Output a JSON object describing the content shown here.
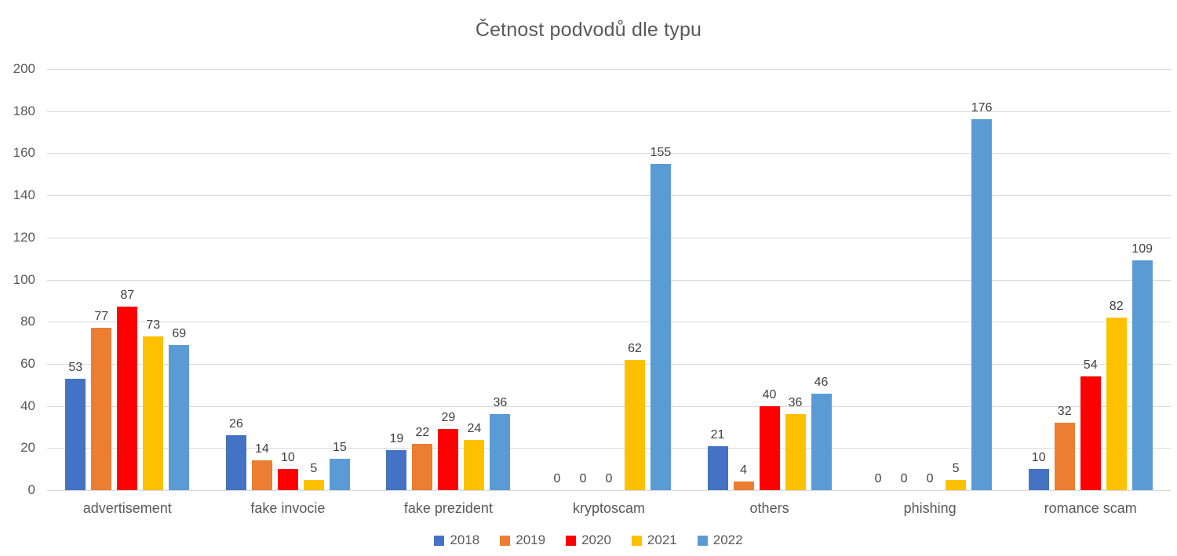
{
  "chart_data": {
    "type": "bar",
    "title": "Četnost podvodů dle typu",
    "categories": [
      "advertisement",
      "fake invocie",
      "fake prezident",
      "kryptoscam",
      "others",
      "phishing",
      "romance scam"
    ],
    "series": [
      {
        "name": "2018",
        "color": "#4472C4",
        "values": [
          53,
          26,
          19,
          0,
          21,
          0,
          10
        ]
      },
      {
        "name": "2019",
        "color": "#ED7D31",
        "values": [
          77,
          14,
          22,
          0,
          4,
          0,
          32
        ]
      },
      {
        "name": "2020",
        "color": "#FF0000",
        "values": [
          87,
          10,
          29,
          0,
          40,
          0,
          54
        ]
      },
      {
        "name": "2021",
        "color": "#FFC000",
        "values": [
          73,
          5,
          24,
          62,
          36,
          5,
          82
        ]
      },
      {
        "name": "2022",
        "color": "#5B9BD5",
        "values": [
          69,
          15,
          36,
          155,
          46,
          176,
          109
        ]
      }
    ],
    "ylim": [
      0,
      200
    ],
    "ytick_step": 20,
    "ytick_labels": [
      "0",
      "20",
      "40",
      "60",
      "80",
      "100",
      "120",
      "140",
      "160",
      "180",
      "200"
    ],
    "grid": true,
    "data_labels": true,
    "legend_position": "bottom"
  },
  "styles": {
    "axis_text_color": "#595959",
    "data_label_color": "#404040",
    "gridline_color": "#D9D9D9",
    "background": "#FFFFFF"
  }
}
